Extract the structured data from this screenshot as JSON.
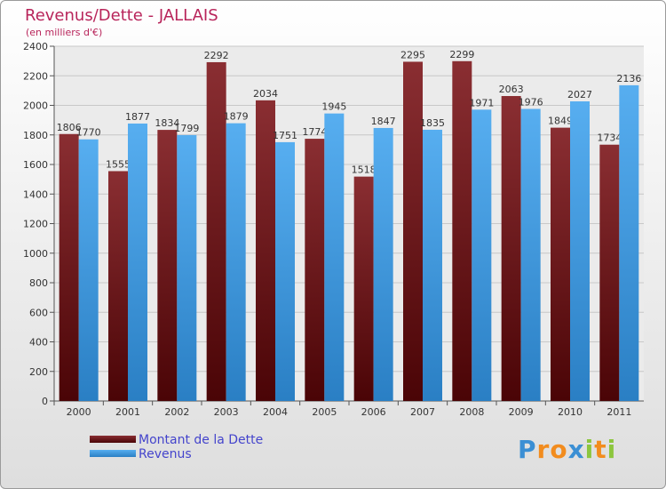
{
  "header": {
    "title": "Revenus/Dette - JALLAIS",
    "subtitle": "(en milliers d'€)"
  },
  "chart_data": {
    "type": "bar",
    "categories": [
      "2000",
      "2001",
      "2002",
      "2003",
      "2004",
      "2005",
      "2006",
      "2007",
      "2008",
      "2009",
      "2010",
      "2011"
    ],
    "series": [
      {
        "name": "Montant de la Dette",
        "color": "#7a1a1e",
        "values": [
          1806,
          1555,
          1834,
          2292,
          2034,
          1774,
          1518,
          2295,
          2299,
          2063,
          1849,
          1734
        ]
      },
      {
        "name": "Revenus",
        "color": "#3d9be3",
        "values": [
          1770,
          1877,
          1799,
          1879,
          1751,
          1945,
          1847,
          1835,
          1971,
          1976,
          2027,
          2136
        ]
      }
    ],
    "ylim": [
      0,
      2400
    ],
    "yticks": [
      0,
      200,
      400,
      600,
      800,
      1000,
      1200,
      1400,
      1600,
      1800,
      2000,
      2200,
      2400
    ],
    "grid": true,
    "legend_position": "bottom-left"
  },
  "branding": {
    "letters": [
      {
        "char": "P",
        "color": "#3b8fd4"
      },
      {
        "char": "r",
        "color": "#f28c1e"
      },
      {
        "char": "o",
        "color": "#f28c1e"
      },
      {
        "char": "x",
        "color": "#3b8fd4"
      },
      {
        "char": "i",
        "color": "#8cc63e"
      },
      {
        "char": "t",
        "color": "#f28c1e"
      },
      {
        "char": "i",
        "color": "#8cc63e"
      }
    ]
  }
}
